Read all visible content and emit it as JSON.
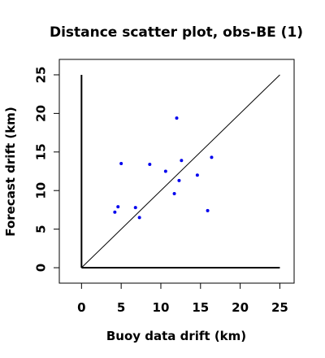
{
  "chart_data": {
    "type": "scatter",
    "title": "Distance scatter plot, obs-BE (1)",
    "xlabel": "Buoy data drift (km)",
    "ylabel": "Forecast drift (km)",
    "xlim": [
      -2.8,
      26.8
    ],
    "ylim": [
      -2.0,
      27.0
    ],
    "xticks": [
      0,
      5,
      10,
      15,
      20,
      25
    ],
    "yticks": [
      0,
      5,
      10,
      15,
      20,
      25
    ],
    "xtick_labels": [
      "0",
      "5",
      "10",
      "15",
      "20",
      "25"
    ],
    "ytick_labels": [
      "0",
      "5",
      "10",
      "15",
      "20",
      "25"
    ],
    "grid": false,
    "reference_line": {
      "from": [
        0,
        0
      ],
      "to": [
        25,
        25
      ]
    },
    "axes_lines": {
      "x_from": [
        0,
        0
      ],
      "x_to": [
        25,
        0
      ],
      "y_from": [
        0,
        0
      ],
      "y_to": [
        0,
        25
      ]
    },
    "point_color": "#0000ee",
    "points": [
      {
        "x": 4.2,
        "y": 7.2
      },
      {
        "x": 4.6,
        "y": 7.9
      },
      {
        "x": 5.0,
        "y": 13.5
      },
      {
        "x": 6.8,
        "y": 7.8
      },
      {
        "x": 7.3,
        "y": 6.5
      },
      {
        "x": 8.6,
        "y": 13.4
      },
      {
        "x": 10.6,
        "y": 12.5
      },
      {
        "x": 11.7,
        "y": 9.6
      },
      {
        "x": 12.0,
        "y": 19.4
      },
      {
        "x": 12.3,
        "y": 11.3
      },
      {
        "x": 12.6,
        "y": 13.9
      },
      {
        "x": 14.6,
        "y": 12.0
      },
      {
        "x": 15.9,
        "y": 7.4
      },
      {
        "x": 16.4,
        "y": 14.3
      }
    ]
  }
}
